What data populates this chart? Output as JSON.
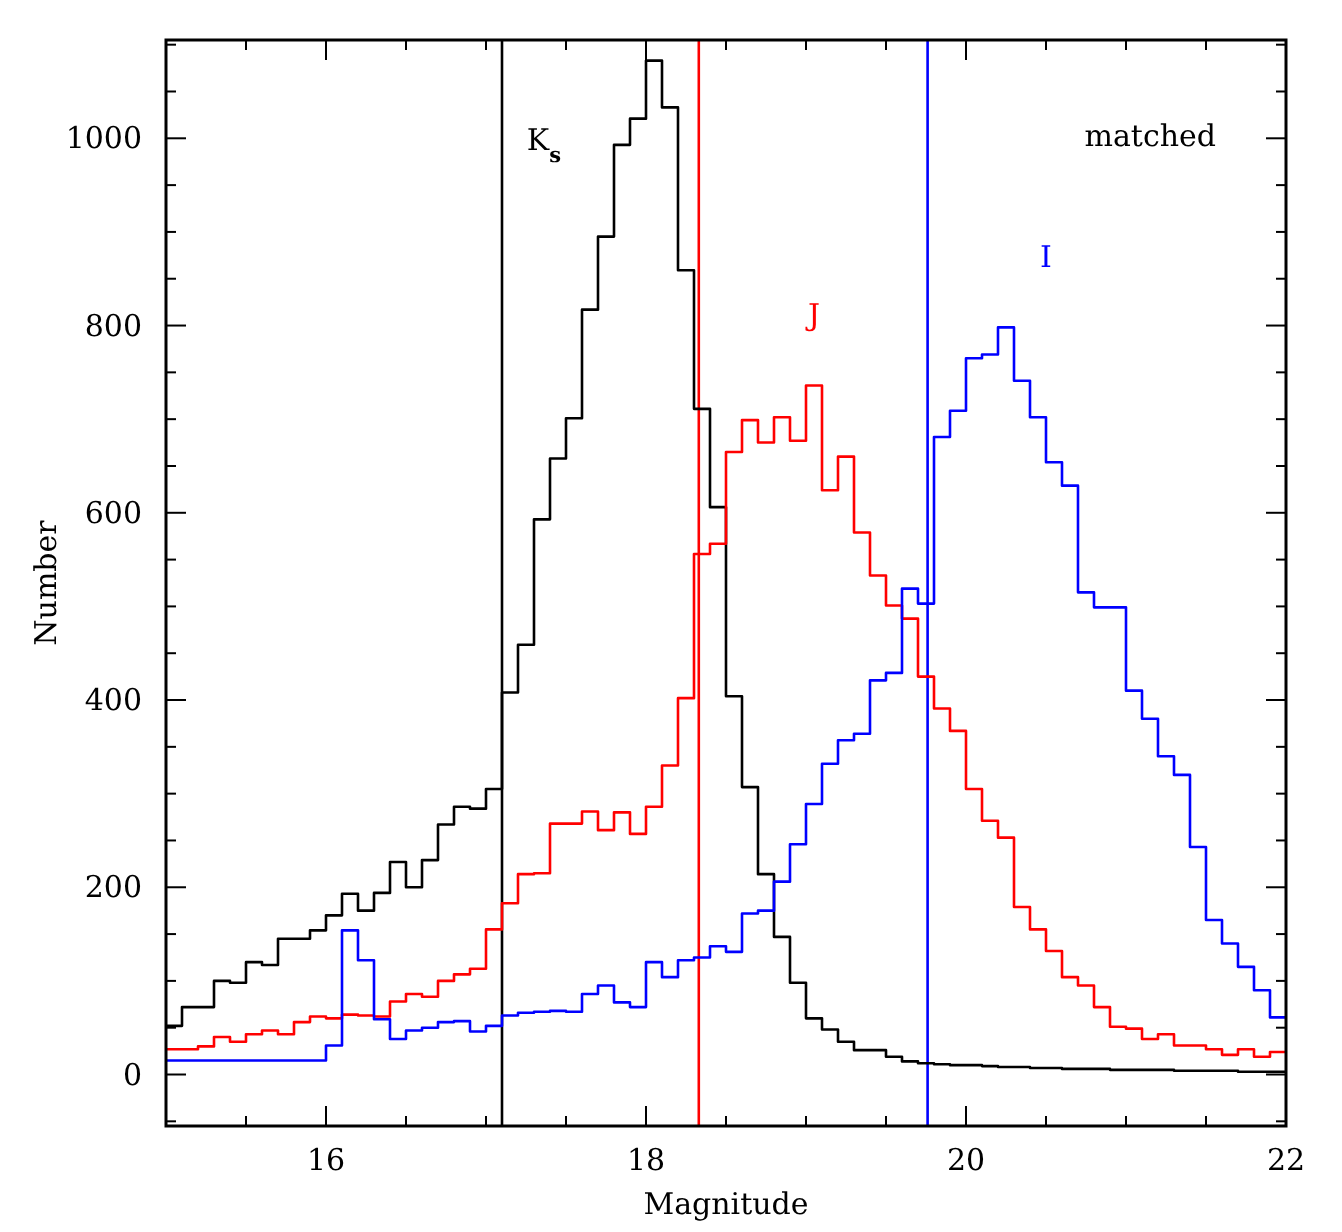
{
  "chart_data": {
    "type": "histogram",
    "xlabel": "Magnitude",
    "ylabel": "Number",
    "annotations": [
      "matched"
    ],
    "bins": [
      15.0,
      15.1,
      15.2,
      15.3,
      15.4,
      15.5,
      15.6,
      15.7,
      15.8,
      15.9,
      16.0,
      16.1,
      16.2,
      16.3,
      16.4,
      16.5,
      16.6,
      16.7,
      16.8,
      16.9,
      17.0,
      17.1,
      17.2,
      17.3,
      17.4,
      17.5,
      17.6,
      17.7,
      17.8,
      17.9,
      18.0,
      18.1,
      18.2,
      18.3,
      18.4,
      18.5,
      18.6,
      18.7,
      18.8,
      18.9,
      19.0,
      19.1,
      19.2,
      19.3,
      19.4,
      19.5,
      19.6,
      19.7,
      19.8,
      19.9,
      20.0,
      20.1,
      20.2,
      20.3,
      20.4,
      20.5,
      20.6,
      20.7,
      20.8,
      20.9,
      21.0,
      21.1,
      21.2,
      21.3,
      21.4,
      21.5,
      21.6,
      21.7,
      21.8,
      21.9,
      22.0
    ],
    "series": [
      {
        "name": "K$_{s}$",
        "color": "#000000",
        "values": [
          52,
          72,
          72,
          100,
          98,
          120,
          117,
          145,
          145,
          154,
          170,
          193,
          175,
          194,
          227,
          200,
          229,
          267,
          286,
          284,
          305,
          408,
          459,
          593,
          658,
          701,
          817,
          895,
          993,
          1021,
          1083,
          1033,
          859,
          711,
          606,
          404,
          307,
          214,
          147,
          98,
          60,
          48,
          35,
          26,
          26,
          19,
          14,
          12,
          11,
          10,
          10,
          9,
          8,
          8,
          7,
          7,
          6,
          6,
          6,
          5,
          5,
          5,
          5,
          4,
          4,
          4,
          4,
          3,
          3,
          3
        ]
      },
      {
        "name": "J",
        "color": "#ff0000",
        "values": [
          27,
          27,
          30,
          40,
          35,
          43,
          47,
          43,
          56,
          62,
          60,
          64,
          63,
          62,
          78,
          86,
          83,
          100,
          107,
          113,
          155,
          183,
          214,
          215,
          268,
          268,
          281,
          261,
          280,
          257,
          286,
          330,
          402,
          556,
          567,
          665,
          699,
          675,
          702,
          677,
          736,
          624,
          660,
          579,
          533,
          501,
          487,
          425,
          391,
          367,
          305,
          271,
          253,
          179,
          155,
          132,
          104,
          95,
          72,
          51,
          49,
          38,
          43,
          31,
          31,
          27,
          21,
          27,
          19,
          24
        ]
      },
      {
        "name": "I",
        "color": "#0000ff",
        "values": [
          15,
          15,
          15,
          15,
          15,
          15,
          15,
          15,
          15,
          15,
          31,
          154,
          122,
          59,
          38,
          47,
          50,
          56,
          57,
          46,
          52,
          63,
          66,
          67,
          68,
          67,
          86,
          95,
          77,
          72,
          120,
          104,
          122,
          125,
          137,
          131,
          172,
          175,
          206,
          246,
          289,
          332,
          357,
          364,
          421,
          429,
          519,
          503,
          681,
          709,
          765,
          769,
          798,
          741,
          702,
          654,
          629,
          515,
          499,
          499,
          410,
          380,
          340,
          320,
          243,
          165,
          140,
          115,
          90,
          61
        ]
      }
    ],
    "ref_lines": [
      {
        "axis": "x",
        "value": 17.1,
        "color": "#000000"
      },
      {
        "axis": "x",
        "value": 18.33,
        "color": "#ff0000"
      },
      {
        "axis": "x",
        "value": 19.76,
        "color": "#0000ff"
      }
    ],
    "xlim": [
      15,
      22
    ],
    "xticks": [
      {
        "value": 15,
        "label": null
      },
      {
        "value": 15.5,
        "label": null
      },
      16,
      {
        "value": 16.5,
        "label": null
      },
      {
        "value": 17,
        "label": null
      },
      {
        "value": 17.5,
        "label": null
      },
      18,
      {
        "value": 18.5,
        "label": null
      },
      {
        "value": 19,
        "label": null
      },
      {
        "value": 19.5,
        "label": null
      },
      20,
      {
        "value": 20.5,
        "label": null
      },
      {
        "value": 21,
        "label": null
      },
      {
        "value": 21.5,
        "label": null
      },
      22
    ],
    "ylim": [
      -55,
      1105
    ],
    "yticks": [
      {
        "value": -50,
        "label": null
      },
      0,
      {
        "value": 50,
        "label": null
      },
      {
        "value": 100,
        "label": null
      },
      {
        "value": 150,
        "label": null
      },
      200,
      {
        "value": 250,
        "label": null
      },
      {
        "value": 300,
        "label": null
      },
      {
        "value": 350,
        "label": null
      },
      400,
      {
        "value": 450,
        "label": null
      },
      {
        "value": 500,
        "label": null
      },
      {
        "value": 550,
        "label": null
      },
      600,
      {
        "value": 650,
        "label": null
      },
      {
        "value": 700,
        "label": null
      },
      {
        "value": 750,
        "label": null
      },
      800,
      {
        "value": 850,
        "label": null
      },
      {
        "value": 900,
        "label": null
      },
      {
        "value": 950,
        "label": null
      },
      1000,
      {
        "value": 1050,
        "label": null
      },
      {
        "value": 1100,
        "label": null
      }
    ],
    "grid": false
  }
}
